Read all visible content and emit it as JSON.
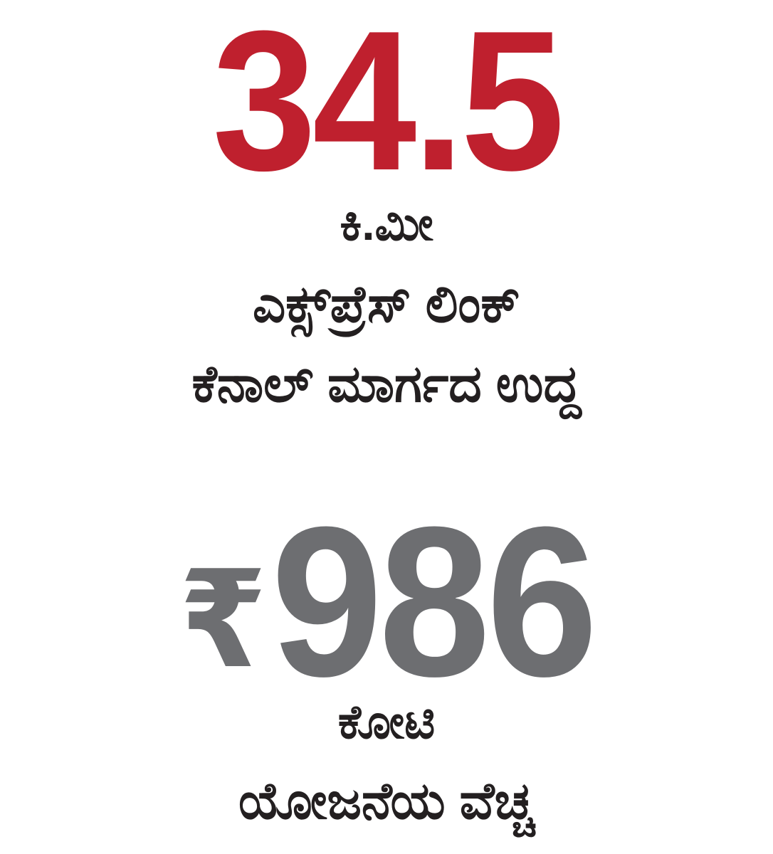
{
  "page": {
    "background": "#ffffff",
    "language": "Kannada"
  },
  "colors": {
    "accent_red": "#bf202e",
    "stat_gray": "#6d6e71",
    "text_black": "#231f20"
  },
  "stats": [
    {
      "id": "canal-length",
      "value": "34.5",
      "value_color": "#bf202e",
      "unit": "ಕಿ.ಮೀ",
      "lines": [
        "ಎಕ್ಸ್‌ಪ್ರೆಸ್ ಲಿಂಕ್",
        "ಕೆನಾಲ್ ಮಾರ್ಗದ ಉದ್ದ"
      ]
    },
    {
      "id": "project-cost",
      "currency": "₹",
      "value": "986",
      "value_color": "#6d6e71",
      "unit": "ಕೋಟಿ",
      "lines": [
        "ಯೋಜನೆಯ ವೆಚ್ಚ"
      ]
    }
  ]
}
